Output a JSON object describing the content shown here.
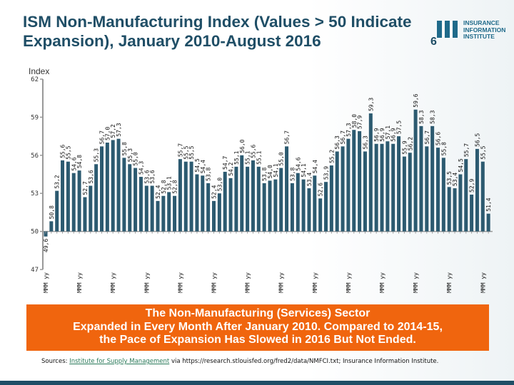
{
  "title": "ISM Non-Manufacturing Index (Values > 50 Indicate Expansion), January 2010-August 2016",
  "logo": {
    "lines": [
      "INSURANCE",
      "INFORMATION",
      "INSTITUTE"
    ],
    "mark": "iii"
  },
  "slide_number": "6",
  "callout": {
    "line1": "The Non-Manufacturing (Services) Sector",
    "line2": "Expanded in Every Month After January 2010. Compared to 2014-15,",
    "line3": "the Pace of Expansion Has Slowed in 2016 But Not Ended."
  },
  "sources": {
    "prefix": "Sources: ",
    "link": "Institute for Supply Management",
    "suffix": " via https://research.stlouisfed.org/fred2/data/NMFCI.txt; Insurance Information Institute."
  },
  "colors": {
    "bar": "#2c5a70",
    "title": "#1f4e66",
    "callout": "#f0650e"
  },
  "chart_data": {
    "type": "bar",
    "ylabel": "Index",
    "ylim": [
      47,
      62
    ],
    "yticks": [
      47,
      50,
      53,
      56,
      59,
      62
    ],
    "grid": false,
    "xtick_labels": [
      "MMM yy",
      "MMM yy",
      "MMM yy",
      "MMM yy",
      "MMM yy",
      "MMM yy",
      "MMM yy",
      "MMM yy",
      "MMM yy",
      "MMM yy",
      "MMM yy",
      "MMM yy",
      "MMM yy",
      "MMM yy"
    ],
    "xtick_every": 6,
    "values": [
      49.6,
      50.8,
      53.2,
      55.6,
      55.5,
      54.6,
      54.8,
      52.7,
      53.6,
      55.3,
      56.7,
      57.0,
      57.2,
      57.3,
      55.8,
      55.3,
      55.0,
      54.3,
      53.6,
      53.6,
      52.4,
      52.8,
      53.1,
      52.8,
      55.7,
      55.5,
      55.5,
      54.5,
      54.4,
      53.8,
      52.4,
      53.0,
      54.7,
      54.2,
      55.1,
      56.0,
      55.1,
      55.6,
      55.1,
      53.8,
      54.0,
      54.1,
      55.0,
      56.7,
      53.8,
      54.6,
      54.1,
      53.4,
      54.4,
      52.6,
      53.9,
      55.2,
      56.3,
      56.7,
      57.3,
      58.0,
      57.9,
      56.3,
      59.3,
      56.9,
      56.9,
      57.1,
      56.9,
      57.5,
      55.9,
      56.2,
      59.6,
      58.3,
      56.7,
      58.3,
      56.6,
      55.8,
      53.5,
      53.4,
      54.5,
      55.7,
      52.9,
      56.5,
      55.5,
      51.4
    ]
  }
}
